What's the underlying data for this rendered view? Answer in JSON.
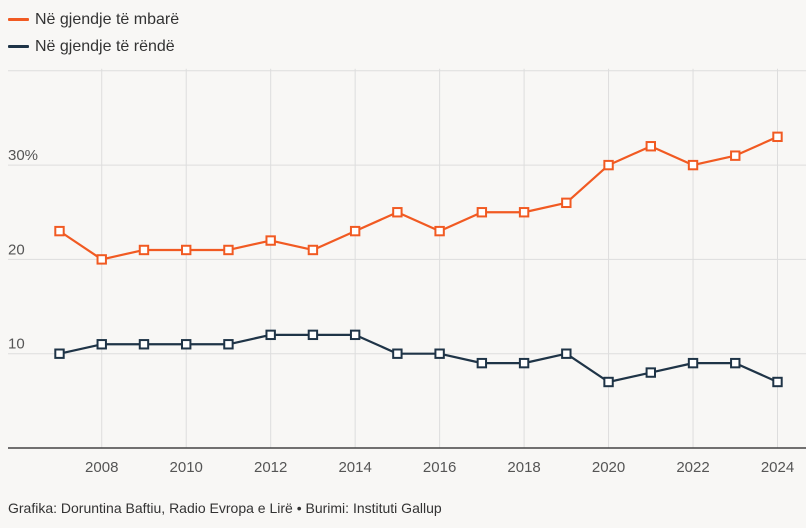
{
  "colors": {
    "orange": "#f15a22",
    "navy": "#1f3447",
    "grid": "#dddddd",
    "axis": "#444444"
  },
  "footer": {
    "credit": "Grafika: Doruntina Baftiu, Radio Evropa e Lirë • Burimi: Instituti Gallup"
  },
  "chart_data": {
    "type": "line",
    "title": "",
    "xlabel": "",
    "ylabel": "",
    "x": [
      2007,
      2008,
      2009,
      2010,
      2011,
      2012,
      2013,
      2014,
      2015,
      2016,
      2017,
      2018,
      2019,
      2020,
      2021,
      2022,
      2023,
      2024
    ],
    "xticks": [
      "2008",
      "2010",
      "2012",
      "2014",
      "2016",
      "2018",
      "2020",
      "2022",
      "2024"
    ],
    "yticks": [
      {
        "value": 10,
        "label": "10"
      },
      {
        "value": 20,
        "label": "20"
      },
      {
        "value": 30,
        "label": "30%"
      }
    ],
    "ylim": [
      0,
      40
    ],
    "grid": true,
    "legend": "top-left",
    "series": [
      {
        "name": "Në gjendje të mbarë",
        "color": "#f15a22",
        "values": [
          23,
          20,
          21,
          21,
          21,
          22,
          21,
          23,
          25,
          23,
          25,
          25,
          26,
          30,
          32,
          30,
          31,
          33
        ]
      },
      {
        "name": "Në gjendje të rëndë",
        "color": "#1f3447",
        "values": [
          10,
          11,
          11,
          11,
          11,
          12,
          12,
          12,
          10,
          10,
          9,
          9,
          10,
          7,
          8,
          9,
          9,
          7
        ]
      }
    ]
  }
}
